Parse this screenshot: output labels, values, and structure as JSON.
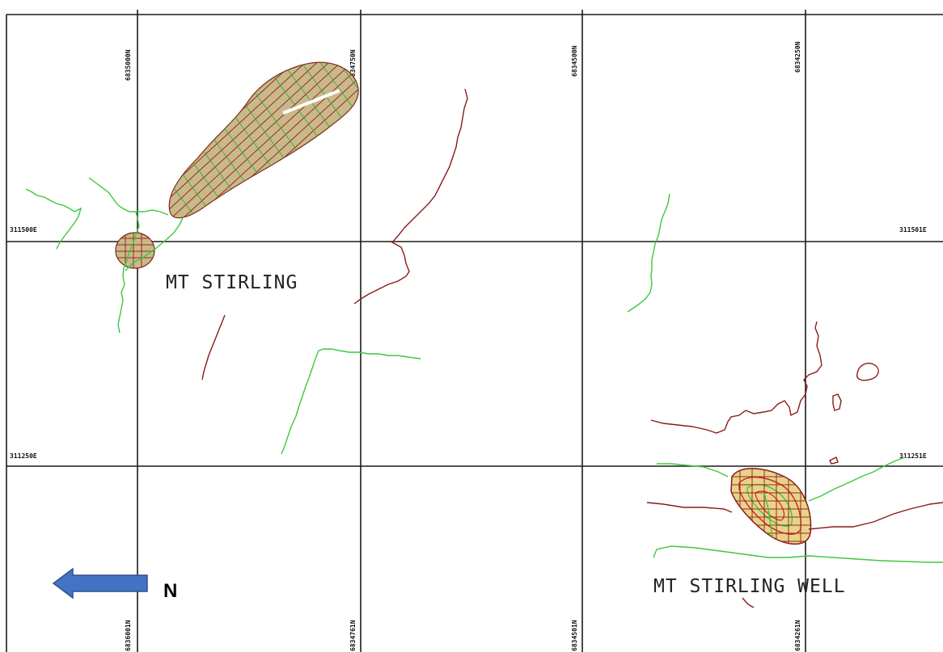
{
  "map": {
    "labels": {
      "mt_stirling": "MT STIRLING",
      "mt_stirling_well": "MT STIRLING WELL",
      "north": "N"
    },
    "northings_top": [
      "6835000N",
      "6834750N",
      "6834500N",
      "6834250N"
    ],
    "northings_bottom": [
      "6836001N",
      "6834761N",
      "6834501N",
      "6834261N"
    ],
    "eastings_left": [
      "311500E",
      "311250E"
    ],
    "eastings_right": [
      "311501E",
      "311251E"
    ],
    "colors": {
      "grid": "#1a1a1a",
      "green_trace": "#3cc83c",
      "red_trace": "#8b1a1a",
      "north_arrow": "#4472c4",
      "ore_body_fill": "#c9b98a"
    }
  }
}
